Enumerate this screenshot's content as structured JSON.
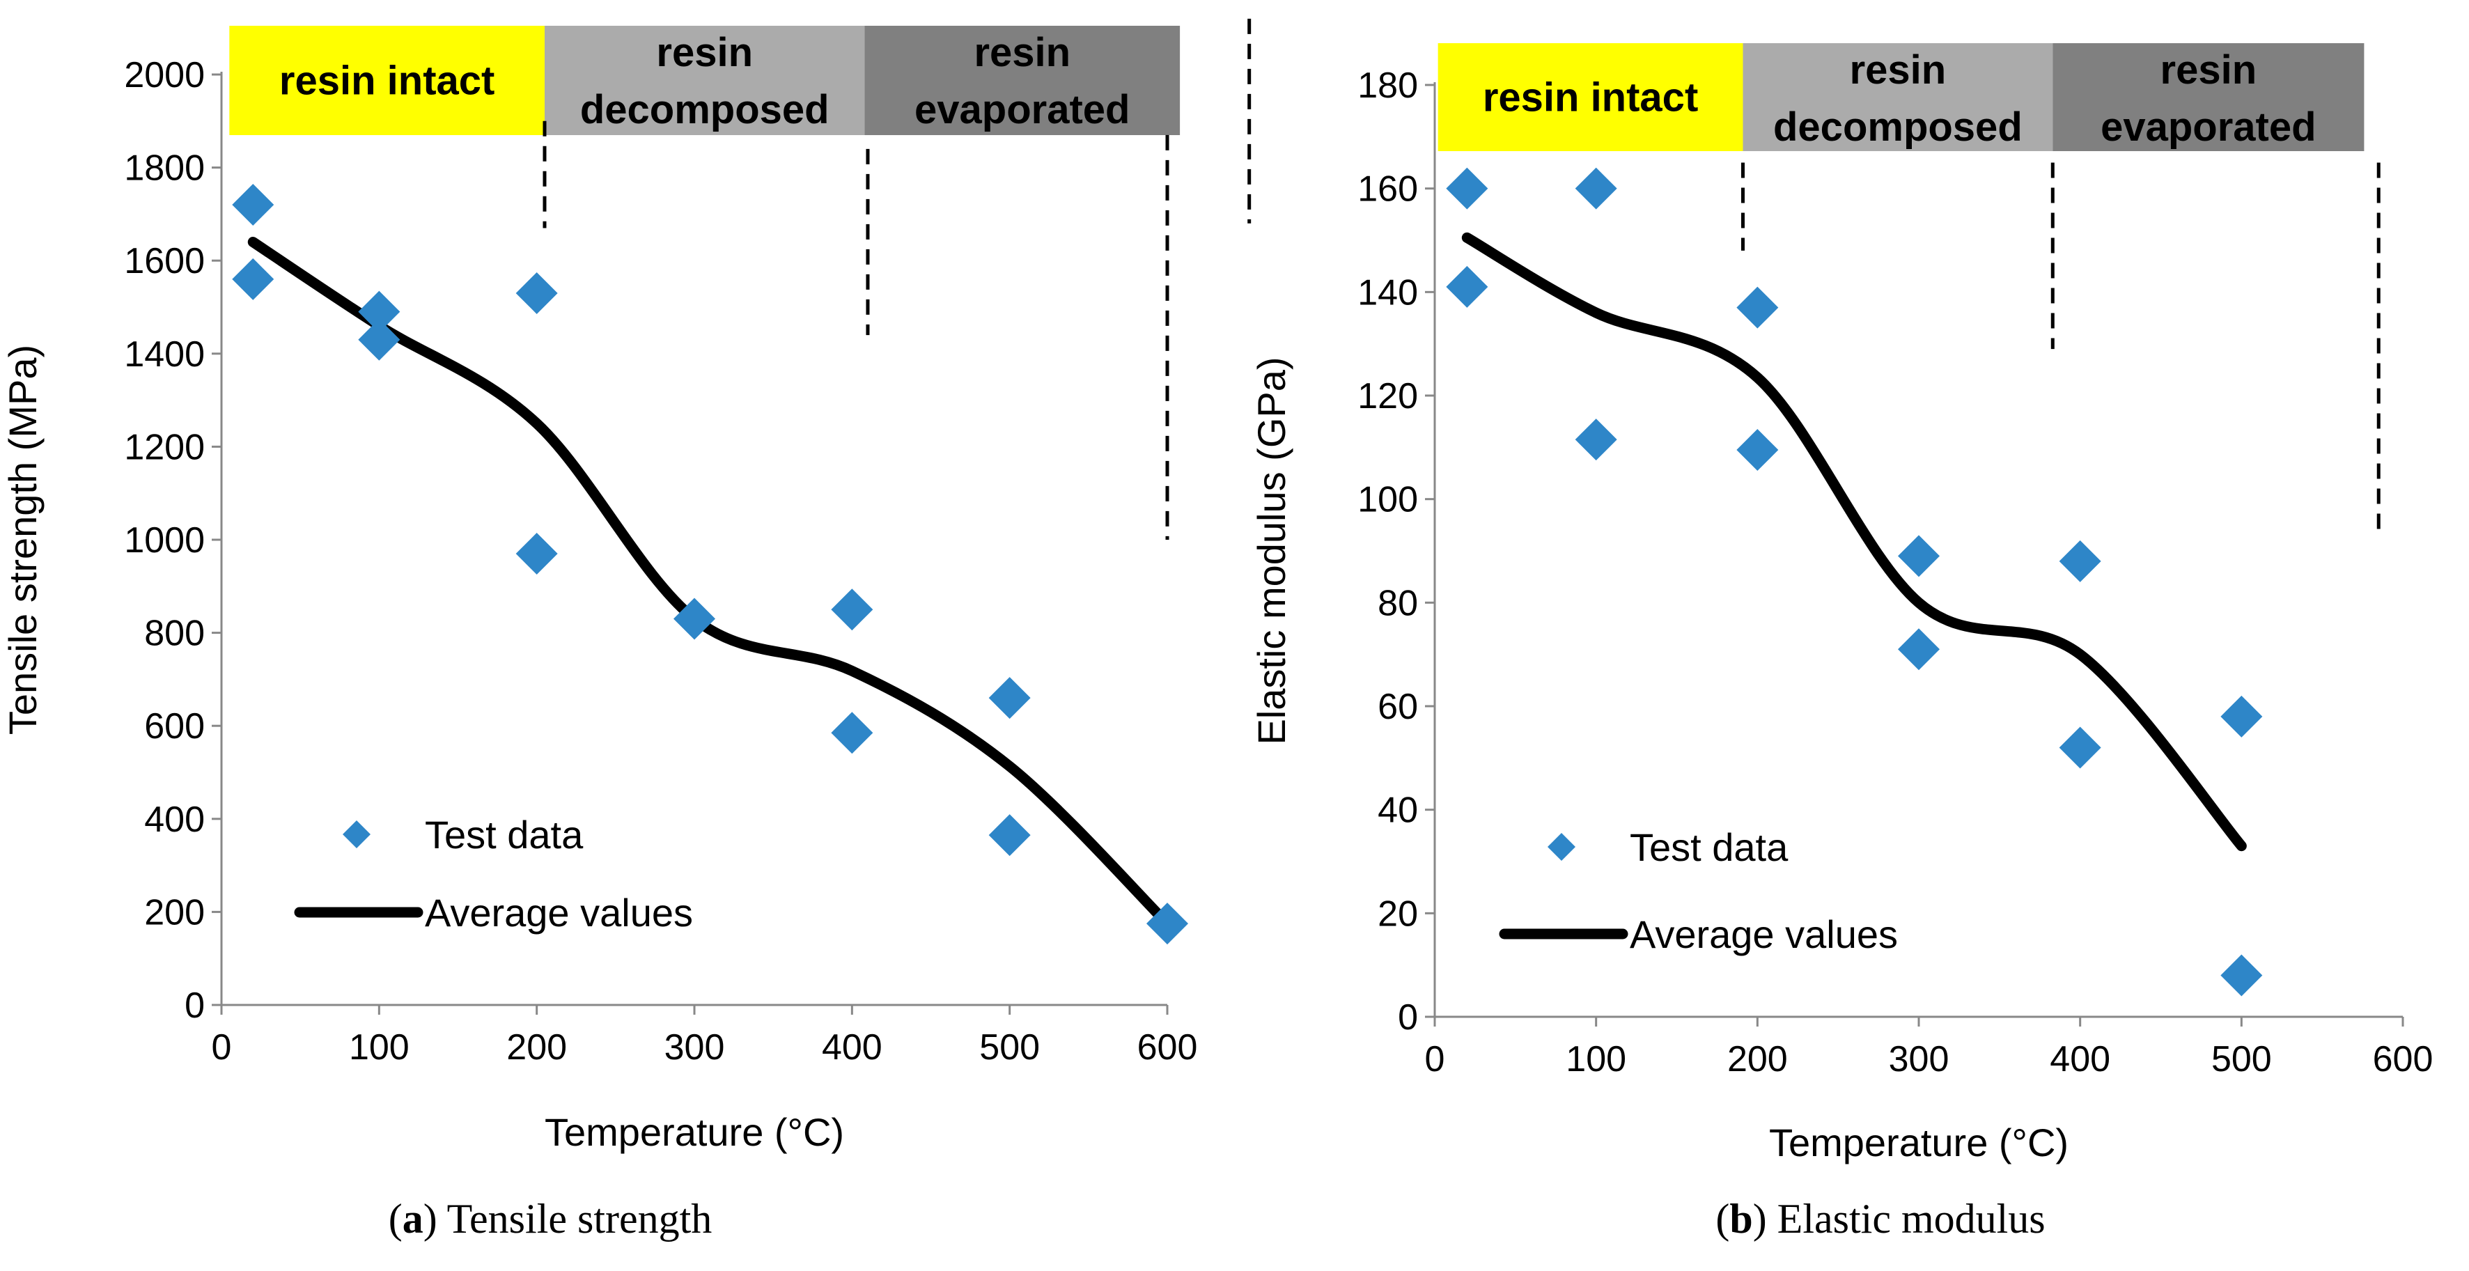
{
  "chart_data": [
    {
      "type": "scatter",
      "id": "a",
      "caption_prefix": "(",
      "caption_letter": "a",
      "caption_suffix": ") Tensile strength",
      "xlabel": "Temperature (°C)",
      "ylabel": "Tensile strength (MPa)",
      "xlim": [
        0,
        600
      ],
      "ylim": [
        0,
        2000
      ],
      "xticks": [
        0,
        100,
        200,
        300,
        400,
        500,
        600
      ],
      "yticks": [
        0,
        200,
        400,
        600,
        800,
        1000,
        1200,
        1400,
        1600,
        1800,
        2000
      ],
      "legend_position": "bottom-left",
      "series": [
        {
          "name": "Test data",
          "kind": "scatter",
          "color": "#2E86C8",
          "marker": "diamond",
          "points": [
            [
              20,
              1720
            ],
            [
              20,
              1560
            ],
            [
              100,
              1490
            ],
            [
              100,
              1430
            ],
            [
              200,
              1530
            ],
            [
              200,
              970
            ],
            [
              300,
              830
            ],
            [
              400,
              850
            ],
            [
              400,
              585
            ],
            [
              500,
              660
            ],
            [
              500,
              365
            ],
            [
              600,
              175
            ]
          ]
        },
        {
          "name": "Average values",
          "kind": "line",
          "color": "#000000",
          "smooth": true,
          "points": [
            [
              20,
              1640
            ],
            [
              100,
              1460
            ],
            [
              200,
              1250
            ],
            [
              300,
              830
            ],
            [
              400,
              718
            ],
            [
              500,
              513
            ],
            [
              600,
              175
            ]
          ]
        }
      ],
      "regions": [
        {
          "label": "resin intact",
          "lines": [
            "resin intact"
          ],
          "x_start": 5,
          "x_end": 205,
          "color": "#FFFF00"
        },
        {
          "label": "resin decomposed",
          "lines": [
            "resin",
            "decomposed"
          ],
          "x_start": 205,
          "x_end": 408,
          "color": "#ABABAB"
        },
        {
          "label": "resin evaporated",
          "lines": [
            "resin",
            "evaporated"
          ],
          "x_start": 408,
          "x_end": 608,
          "color": "#808080"
        }
      ],
      "boundaries": [
        {
          "x": 205,
          "y_top": 1900,
          "y_bottom": 1670
        },
        {
          "x": 410,
          "y_top": 1840,
          "y_bottom": 1440
        },
        {
          "x": 600,
          "y_top": 1870,
          "y_bottom": 1000
        },
        {
          "x": 652,
          "y_top": 2120,
          "y_bottom": 1680
        }
      ]
    },
    {
      "type": "scatter",
      "id": "b",
      "caption_prefix": "(",
      "caption_letter": "b",
      "caption_suffix": ") Elastic modulus",
      "xlabel": "Temperature (°C)",
      "ylabel": "Elastic modulus (GPa)",
      "xlim": [
        0,
        600
      ],
      "ylim": [
        0,
        180
      ],
      "xticks": [
        0,
        100,
        200,
        300,
        400,
        500,
        600
      ],
      "yticks": [
        0,
        20,
        40,
        60,
        80,
        100,
        120,
        140,
        160,
        180
      ],
      "legend_position": "bottom-left",
      "series": [
        {
          "name": "Test data",
          "kind": "scatter",
          "color": "#2E86C8",
          "marker": "diamond",
          "points": [
            [
              20,
              160
            ],
            [
              20,
              141
            ],
            [
              100,
              160
            ],
            [
              100,
              111.5
            ],
            [
              200,
              137
            ],
            [
              200,
              109.5
            ],
            [
              300,
              89
            ],
            [
              300,
              71
            ],
            [
              400,
              88
            ],
            [
              400,
              52
            ],
            [
              500,
              58
            ],
            [
              500,
              8
            ]
          ]
        },
        {
          "name": "Average values",
          "kind": "line",
          "color": "#000000",
          "smooth": true,
          "points": [
            [
              20,
              150.5
            ],
            [
              100,
              136
            ],
            [
              200,
              123.5
            ],
            [
              300,
              80
            ],
            [
              400,
              70
            ],
            [
              500,
              33
            ]
          ]
        }
      ],
      "regions": [
        {
          "label": "resin intact",
          "lines": [
            "resin intact"
          ],
          "x_start": 2,
          "x_end": 191,
          "color": "#FFFF00"
        },
        {
          "label": "resin decomposed",
          "lines": [
            "resin",
            "decomposed"
          ],
          "x_start": 191,
          "x_end": 383,
          "color": "#ABABAB"
        },
        {
          "label": "resin evaporated",
          "lines": [
            "resin",
            "evaporated"
          ],
          "x_start": 383,
          "x_end": 576,
          "color": "#808080"
        }
      ],
      "boundaries": [
        {
          "x": 191,
          "y_top": 165,
          "y_bottom": 148
        },
        {
          "x": 383,
          "y_top": 165,
          "y_bottom": 129
        },
        {
          "x": 585,
          "y_top": 165,
          "y_bottom": 94
        }
      ]
    }
  ]
}
